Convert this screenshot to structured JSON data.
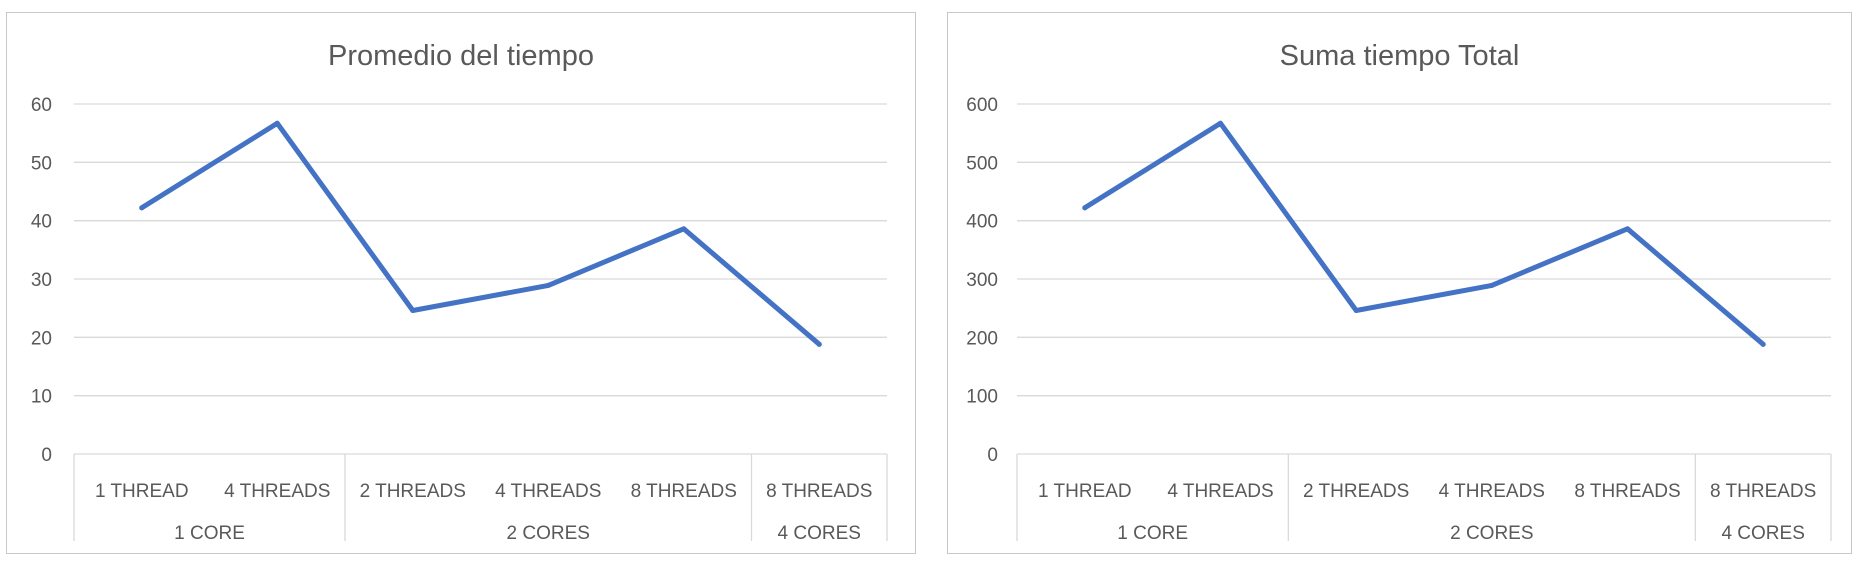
{
  "colors": {
    "series": "#4472c4"
  },
  "chart_data": [
    {
      "type": "line",
      "title": "Promedio del tiempo",
      "xlabel": "",
      "ylabel": "",
      "ylim": [
        0,
        60
      ],
      "y_ticks": [
        0,
        10,
        20,
        30,
        40,
        50,
        60
      ],
      "grid": true,
      "categories": [
        "1 THREAD",
        "4 THREADS",
        "2 THREADS",
        "4 THREADS",
        "8 THREADS",
        "8 THREADS"
      ],
      "groups": [
        {
          "label": "1 CORE",
          "count": 2
        },
        {
          "label": "2 CORES",
          "count": 3
        },
        {
          "label": "4 CORES",
          "count": 1
        }
      ],
      "series": [
        {
          "values": [
            42.2,
            56.7,
            24.6,
            28.9,
            38.6,
            18.8
          ]
        }
      ]
    },
    {
      "type": "line",
      "title": "Suma tiempo Total",
      "xlabel": "",
      "ylabel": "",
      "ylim": [
        0,
        600
      ],
      "y_ticks": [
        0,
        100,
        200,
        300,
        400,
        500,
        600
      ],
      "grid": true,
      "categories": [
        "1 THREAD",
        "4 THREADS",
        "2 THREADS",
        "4 THREADS",
        "8 THREADS",
        "8 THREADS"
      ],
      "groups": [
        {
          "label": "1 CORE",
          "count": 2
        },
        {
          "label": "2 CORES",
          "count": 3
        },
        {
          "label": "4 CORES",
          "count": 1
        }
      ],
      "series": [
        {
          "values": [
            422,
            567,
            246,
            289,
            386,
            188
          ]
        }
      ]
    }
  ]
}
